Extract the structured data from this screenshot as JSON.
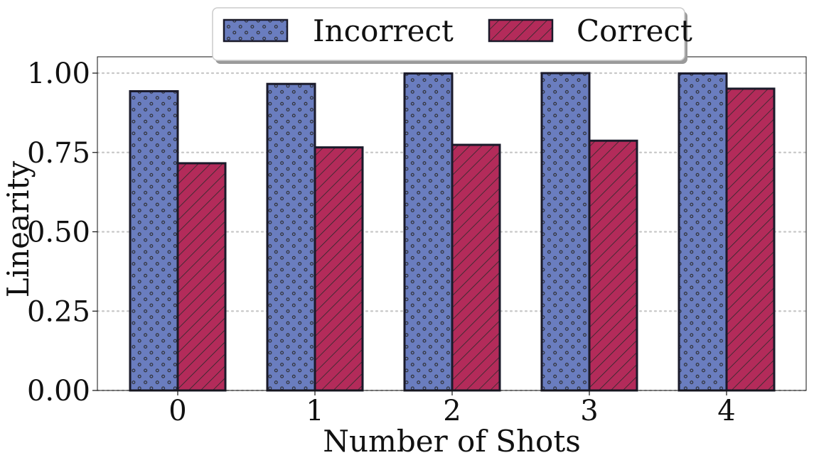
{
  "chart_data": {
    "type": "bar",
    "title": "",
    "xlabel": "Number of Shots",
    "ylabel": "Linearity",
    "categories": [
      "0",
      "1",
      "2",
      "3",
      "4"
    ],
    "ylim": [
      0,
      1.0
    ],
    "yticks": [
      0.0,
      0.25,
      0.5,
      0.75,
      1.0
    ],
    "ytick_labels": [
      "0.00",
      "0.25",
      "0.50",
      "0.75",
      "1.00"
    ],
    "grid": "horizontal dotted",
    "legend_position": "top-center",
    "series": [
      {
        "name": "Incorrect",
        "color": "#6a7dbf",
        "pattern": "dots",
        "values": [
          0.943,
          0.966,
          0.999,
          1.0,
          0.999
        ]
      },
      {
        "name": "Correct",
        "color": "#b32b5a",
        "pattern": "diagonal-hatch",
        "values": [
          0.716,
          0.766,
          0.774,
          0.787,
          0.951
        ]
      }
    ]
  }
}
